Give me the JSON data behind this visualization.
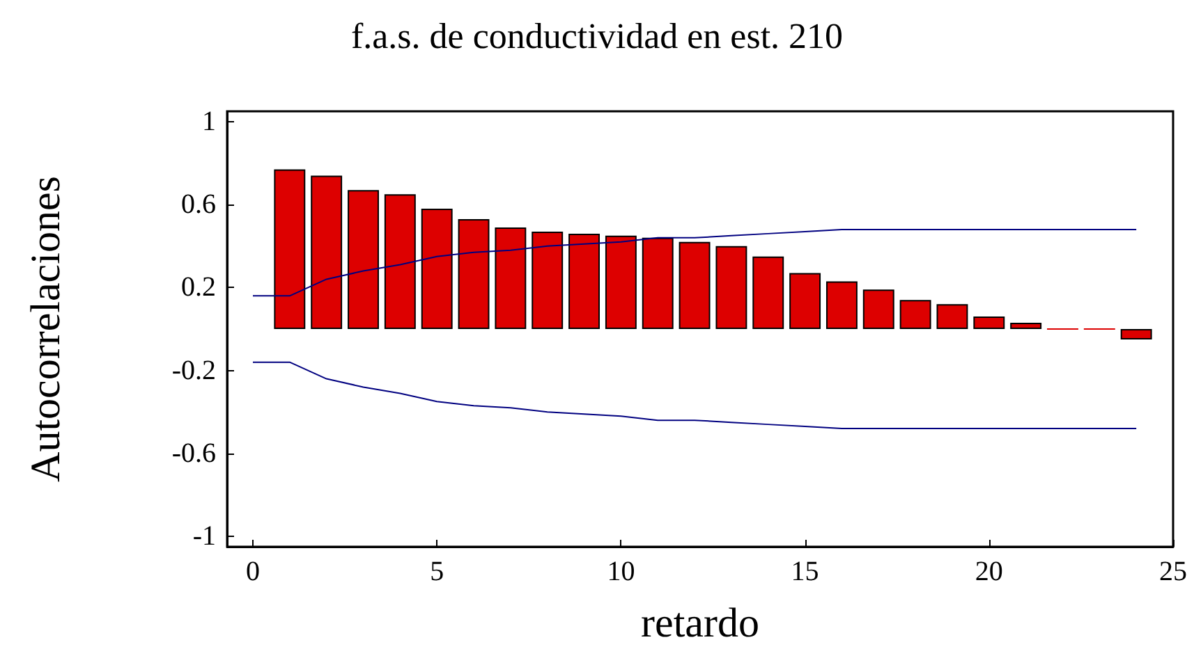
{
  "chart_data": {
    "type": "bar",
    "title": "f.a.s. de conductividad en est. 210",
    "xlabel": "retardo",
    "ylabel": "Autocorrelaciones",
    "xlim": [
      -0.7,
      25
    ],
    "xticks": [
      0,
      5,
      10,
      15,
      20,
      25
    ],
    "ylim": [
      -1.05,
      1.05
    ],
    "yticks": [
      -1,
      -0.6,
      -0.2,
      0.2,
      0.6,
      1
    ],
    "series": [
      {
        "color": "#dd0000",
        "x": [
          1,
          2,
          3,
          4,
          5,
          6,
          7,
          8,
          9,
          10,
          11,
          12,
          13,
          14,
          15,
          16,
          17,
          18,
          19,
          20,
          21,
          22,
          23,
          24
        ],
        "values": [
          0.77,
          0.74,
          0.67,
          0.65,
          0.58,
          0.53,
          0.49,
          0.47,
          0.46,
          0.45,
          0.44,
          0.42,
          0.4,
          0.35,
          0.27,
          0.23,
          0.19,
          0.14,
          0.12,
          0.06,
          0.03,
          0,
          0,
          -0.05
        ]
      },
      {
        "type": "line",
        "color": "#000080",
        "x": [
          0,
          1,
          2,
          3,
          4,
          5,
          6,
          7,
          8,
          9,
          10,
          11,
          12,
          13,
          14,
          15,
          16,
          17,
          18,
          19,
          20,
          21,
          22,
          23,
          24
        ],
        "values": [
          0.16,
          0.16,
          0.24,
          0.28,
          0.31,
          0.35,
          0.37,
          0.38,
          0.4,
          0.41,
          0.42,
          0.44,
          0.44,
          0.45,
          0.46,
          0.47,
          0.48,
          0.48,
          0.48,
          0.48,
          0.48,
          0.48,
          0.48,
          0.48,
          0.48
        ]
      },
      {
        "type": "line",
        "color": "#000080",
        "x": [
          0,
          1,
          2,
          3,
          4,
          5,
          6,
          7,
          8,
          9,
          10,
          11,
          12,
          13,
          14,
          15,
          16,
          17,
          18,
          19,
          20,
          21,
          22,
          23,
          24
        ],
        "values": [
          -0.16,
          -0.16,
          -0.24,
          -0.28,
          -0.31,
          -0.35,
          -0.37,
          -0.38,
          -0.4,
          -0.41,
          -0.42,
          -0.44,
          -0.44,
          -0.45,
          -0.46,
          -0.47,
          -0.48,
          -0.48,
          -0.48,
          -0.48,
          -0.48,
          -0.48,
          -0.48,
          -0.48,
          -0.48
        ]
      }
    ]
  }
}
